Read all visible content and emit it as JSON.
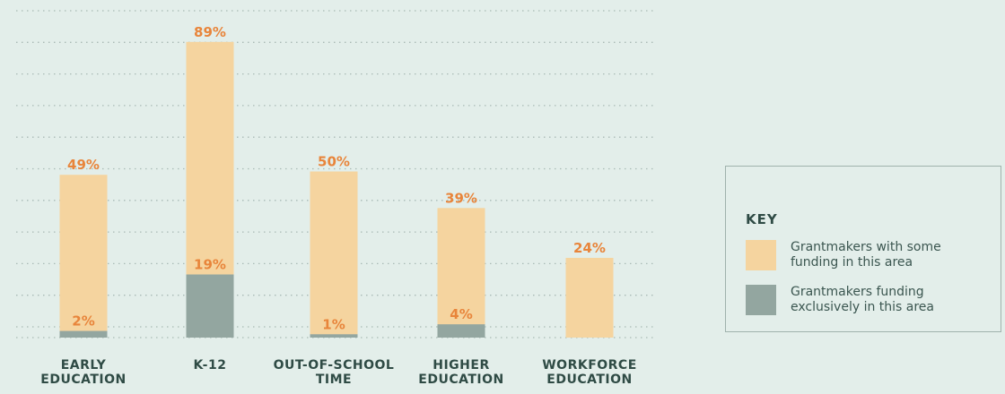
{
  "chart_data": {
    "type": "bar",
    "categories": [
      "EARLY EDUCATION",
      "K-12",
      "OUT-OF-SCHOOL TIME",
      "HIGHER EDUCATION",
      "WORKFORCE EDUCATION"
    ],
    "series": [
      {
        "name": "Grantmakers with some funding in this area",
        "color": "#f5d49f",
        "values": [
          49,
          89,
          50,
          39,
          24
        ],
        "value_labels": [
          "49%",
          "89%",
          "50%",
          "39%",
          "24%"
        ]
      },
      {
        "name": "Grantmakers funding exclusively in this area",
        "color": "#93a6a0",
        "values": [
          2,
          19,
          1,
          4,
          null
        ],
        "value_labels": [
          "2%",
          "19%",
          "1%",
          "4%",
          null
        ]
      }
    ],
    "legend_title": "KEY",
    "ylim": [
      0,
      100
    ],
    "grid": true
  }
}
